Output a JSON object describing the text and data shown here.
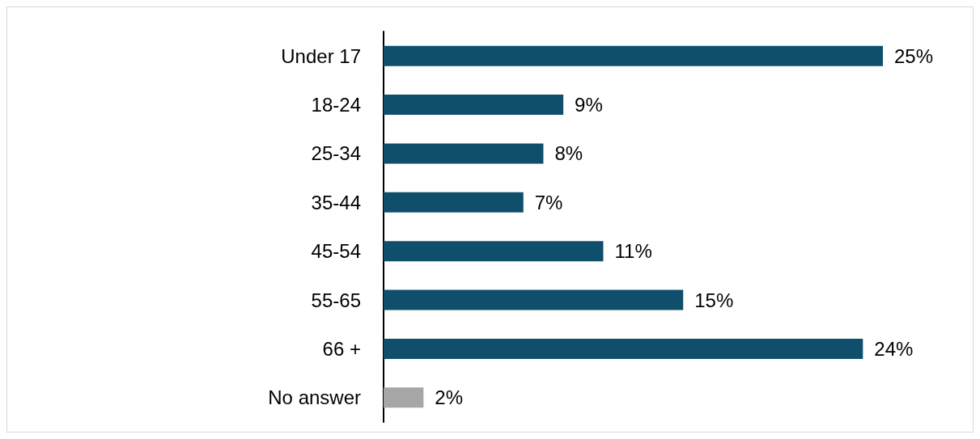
{
  "chart_data": {
    "type": "bar",
    "orientation": "horizontal",
    "categories": [
      "Under 17",
      "18-24",
      "25-34",
      "35-44",
      "45-54",
      "55-65",
      "66 +",
      "No answer"
    ],
    "values": [
      25,
      9,
      8,
      7,
      11,
      15,
      24,
      2
    ],
    "value_labels": [
      "25%",
      "9%",
      "8%",
      "7%",
      "11%",
      "15%",
      "24%",
      "2%"
    ],
    "colors": [
      "#0f4f6b",
      "#0f4f6b",
      "#0f4f6b",
      "#0f4f6b",
      "#0f4f6b",
      "#0f4f6b",
      "#0f4f6b",
      "#a6a6a6"
    ]
  }
}
